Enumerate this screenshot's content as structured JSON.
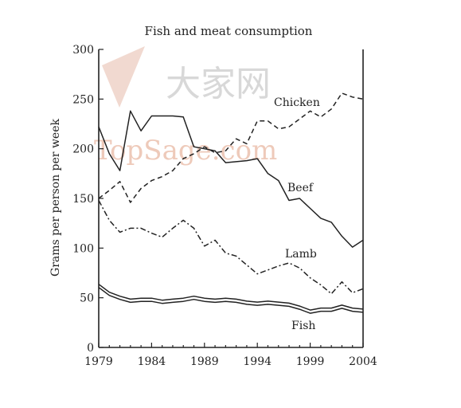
{
  "watermark": {
    "text": "TopSage.com",
    "cjk": "大家网"
  },
  "chart_data": {
    "type": "line",
    "title": "Fish and meat consumption",
    "xlabel": "",
    "ylabel": "Grams per person per week",
    "xlim": [
      1979,
      2004
    ],
    "ylim": [
      0,
      300
    ],
    "xticks": [
      1979,
      1984,
      1989,
      1994,
      1999,
      2004
    ],
    "yticks": [
      0,
      50,
      100,
      150,
      200,
      250,
      300
    ],
    "grid": false,
    "legend": "inline labels",
    "series": [
      {
        "name": "Chicken",
        "style": "dashed",
        "x": [
          1979,
          1980,
          1981,
          1982,
          1983,
          1984,
          1985,
          1986,
          1987,
          1988,
          1989,
          1990,
          1991,
          1992,
          1993,
          1994,
          1995,
          1996,
          1997,
          1998,
          1999,
          2000,
          2001,
          2002,
          2003,
          2004
        ],
        "values": [
          150,
          158,
          167,
          146,
          160,
          168,
          172,
          178,
          190,
          195,
          202,
          196,
          198,
          210,
          205,
          228,
          228,
          220,
          222,
          230,
          238,
          232,
          240,
          256,
          252,
          250
        ]
      },
      {
        "name": "Beef",
        "style": "solid",
        "x": [
          1979,
          1980,
          1981,
          1982,
          1983,
          1984,
          1985,
          1986,
          1987,
          1988,
          1989,
          1990,
          1991,
          1992,
          1993,
          1994,
          1995,
          1996,
          1997,
          1998,
          1999,
          2000,
          2001,
          2002,
          2003,
          2004
        ],
        "values": [
          222,
          195,
          178,
          238,
          218,
          233,
          233,
          233,
          232,
          202,
          200,
          198,
          186,
          187,
          188,
          190,
          175,
          168,
          148,
          150,
          140,
          130,
          126,
          112,
          101,
          108
        ]
      },
      {
        "name": "Lamb",
        "style": "dash-dot",
        "x": [
          1979,
          1980,
          1981,
          1982,
          1983,
          1984,
          1985,
          1986,
          1987,
          1988,
          1989,
          1990,
          1991,
          1992,
          1993,
          1994,
          1995,
          1996,
          1997,
          1998,
          1999,
          2000,
          2001,
          2002,
          2003,
          2004
        ],
        "values": [
          148,
          128,
          116,
          120,
          120,
          115,
          111,
          120,
          128,
          120,
          102,
          108,
          95,
          92,
          83,
          74,
          78,
          82,
          85,
          80,
          70,
          63,
          54,
          66,
          55,
          59
        ]
      },
      {
        "name": "Fish",
        "style": "double",
        "x": [
          1979,
          1980,
          1981,
          1982,
          1983,
          1984,
          1985,
          1986,
          1987,
          1988,
          1989,
          1990,
          1991,
          1992,
          1993,
          1994,
          1995,
          1996,
          1997,
          1998,
          1999,
          2000,
          2001,
          2002,
          2003,
          2004
        ],
        "values": [
          62,
          54,
          50,
          47,
          48,
          48,
          46,
          47,
          48,
          50,
          48,
          47,
          48,
          47,
          45,
          44,
          45,
          44,
          43,
          40,
          36,
          38,
          38,
          41,
          38,
          37
        ]
      }
    ]
  }
}
